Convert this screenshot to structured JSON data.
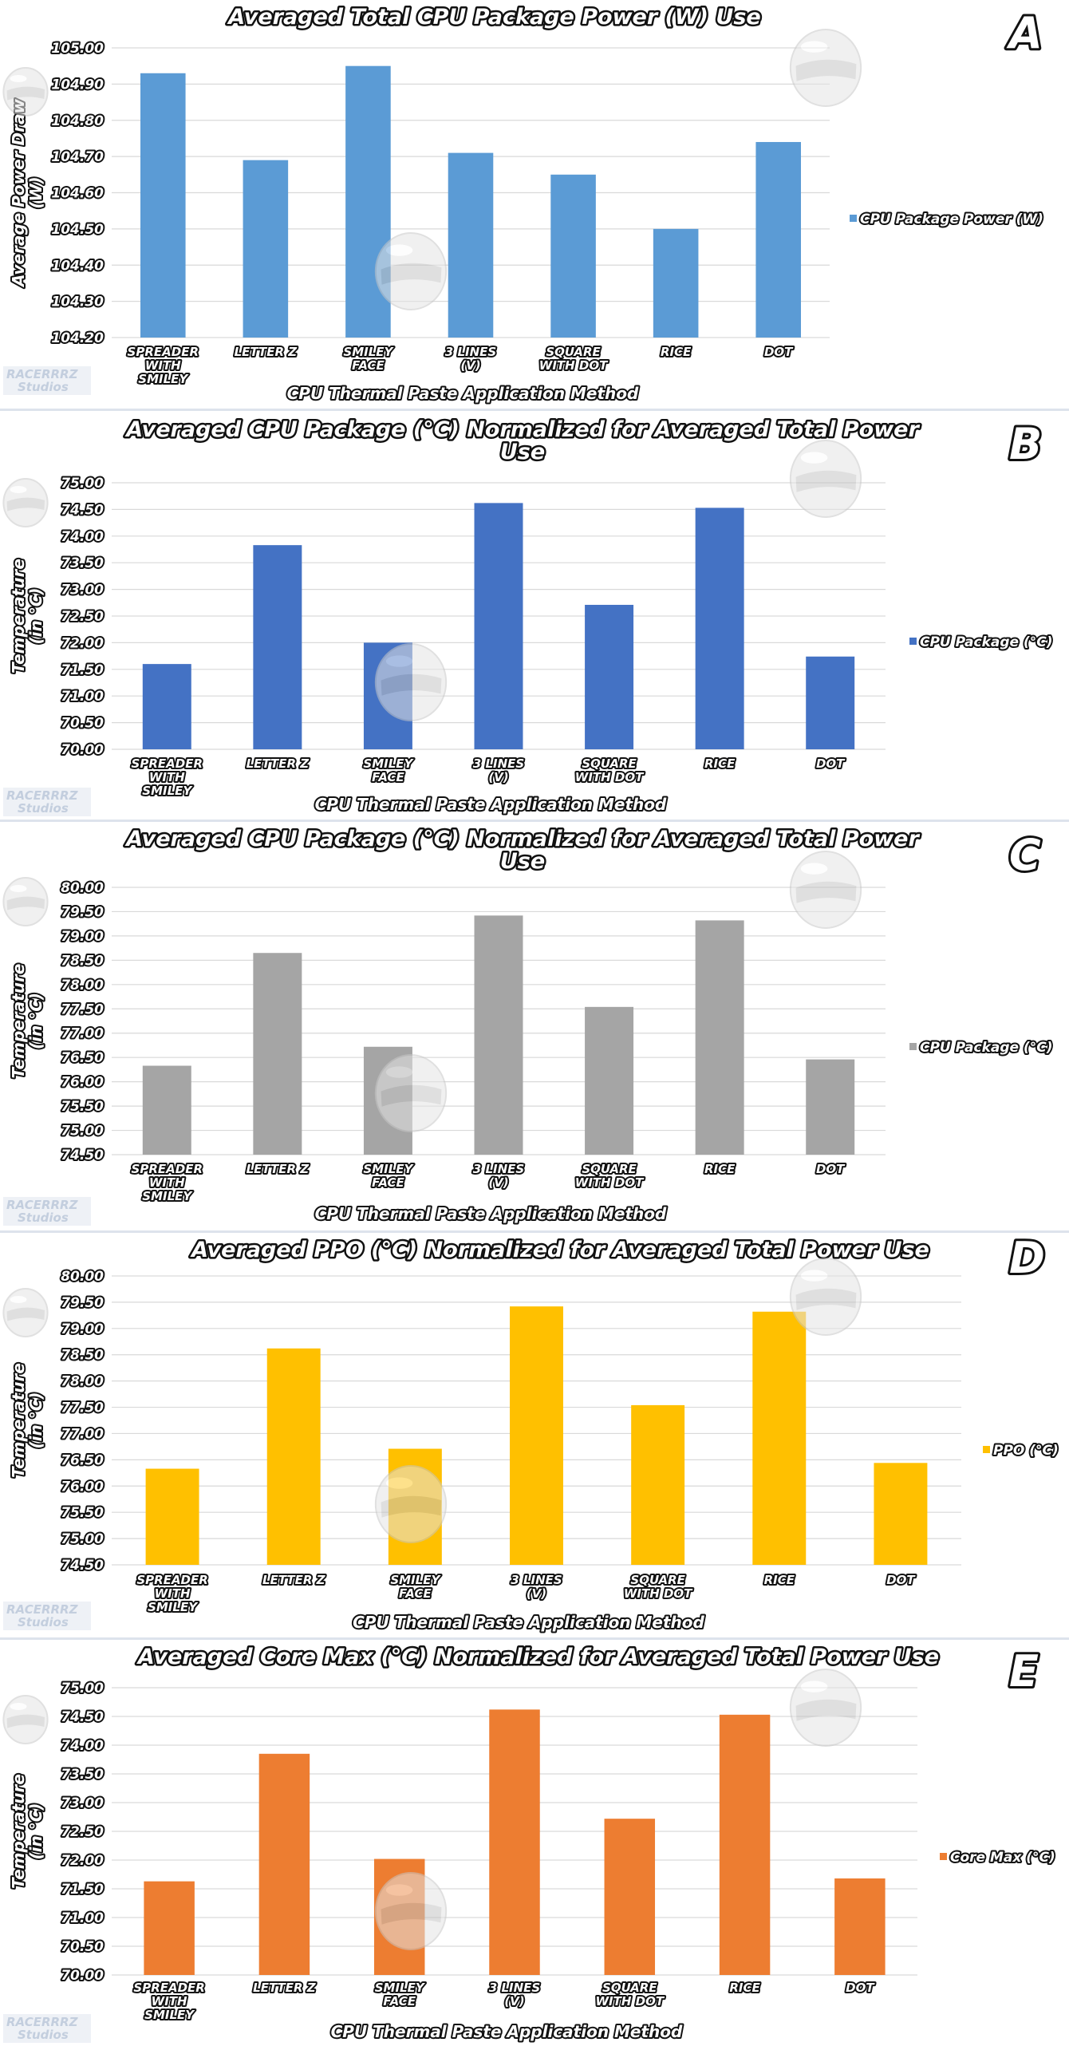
{
  "chart_data": [
    {
      "type": "bar",
      "panel_letter": "A",
      "title": "Averaged Total CPU Package Power (W) Use",
      "xlabel": "CPU Thermal Paste Application Method",
      "ylabel": "Average Power Draw (W)",
      "categories": [
        "SPREADER WITH SMILEY",
        "LETTER Z",
        "SMILEY FACE",
        "3 LINES (V)",
        "SQUARE WITH DOT",
        "RICE",
        "DOT"
      ],
      "series": [
        {
          "name": "CPU Package Power (W)",
          "values": [
            104.93,
            104.69,
            104.95,
            104.71,
            104.65,
            104.5,
            104.74
          ],
          "color": "#5b9bd5"
        }
      ],
      "ylim": [
        104.2,
        105.0
      ],
      "yticks": [
        "104.20",
        "104.30",
        "104.40",
        "104.50",
        "104.60",
        "104.70",
        "104.80",
        "104.90",
        "105.00"
      ],
      "grid": true,
      "legend_position": "right"
    },
    {
      "type": "bar",
      "panel_letter": "B",
      "title": "Averaged CPU Package (°C) Normalized for Averaged Total Power Use",
      "xlabel": "CPU Thermal Paste Application Method",
      "ylabel": "Temperature (in °C)",
      "categories": [
        "SPREADER WITH SMILEY",
        "LETTER Z",
        "SMILEY FACE",
        "3 LINES (V)",
        "SQUARE WITH DOT",
        "RICE",
        "DOT"
      ],
      "series": [
        {
          "name": "CPU Package (°C)",
          "values": [
            71.6,
            73.83,
            72.0,
            74.62,
            72.71,
            74.53,
            71.74
          ],
          "color": "#4472c4"
        }
      ],
      "ylim": [
        70.0,
        75.0
      ],
      "yticks": [
        "70.00",
        "70.50",
        "71.00",
        "71.50",
        "72.00",
        "72.50",
        "73.00",
        "73.50",
        "74.00",
        "74.50",
        "75.00"
      ],
      "grid": true,
      "legend_position": "right"
    },
    {
      "type": "bar",
      "panel_letter": "C",
      "title": "Averaged CPU Package (°C) Normalized for Averaged Total Power Use",
      "xlabel": "CPU Thermal Paste Application Method",
      "ylabel": "Temperature (in °C)",
      "categories": [
        "SPREADER WITH SMILEY",
        "LETTER Z",
        "SMILEY FACE",
        "3 LINES (V)",
        "SQUARE WITH DOT",
        "RICE",
        "DOT"
      ],
      "series": [
        {
          "name": "CPU Package (°C)",
          "values": [
            76.33,
            78.65,
            76.72,
            79.42,
            77.54,
            79.32,
            76.46
          ],
          "color": "#a5a5a5"
        }
      ],
      "ylim": [
        74.5,
        80.0
      ],
      "yticks": [
        "74.50",
        "75.00",
        "75.50",
        "76.00",
        "76.50",
        "77.00",
        "77.50",
        "78.00",
        "78.50",
        "79.00",
        "79.50",
        "80.00"
      ],
      "grid": true,
      "legend_position": "right"
    },
    {
      "type": "bar",
      "panel_letter": "D",
      "title": "Averaged PPO (°C) Normalized for Averaged Total Power Use",
      "xlabel": "CPU Thermal Paste Application Method",
      "ylabel": "Temperature (in °C)",
      "categories": [
        "SPREADER WITH SMILEY",
        "LETTER Z",
        "SMILEY FACE",
        "3 LINES (V)",
        "SQUARE WITH DOT",
        "RICE",
        "DOT"
      ],
      "series": [
        {
          "name": "PPO (°C)",
          "values": [
            76.33,
            78.62,
            76.71,
            79.42,
            77.54,
            79.32,
            76.44
          ],
          "color": "#ffc000"
        }
      ],
      "ylim": [
        74.5,
        80.0
      ],
      "yticks": [
        "74.50",
        "75.00",
        "75.50",
        "76.00",
        "76.50",
        "77.00",
        "77.50",
        "78.00",
        "78.50",
        "79.00",
        "79.50",
        "80.00"
      ],
      "grid": true,
      "legend_position": "right"
    },
    {
      "type": "bar",
      "panel_letter": "E",
      "title": "Averaged Core Max (°C) Normalized for Averaged Total Power Use",
      "xlabel": "CPU Thermal Paste Application Method",
      "ylabel": "Temperature (in °C)",
      "categories": [
        "SPREADER WITH SMILEY",
        "LETTER Z",
        "SMILEY FACE",
        "3 LINES (V)",
        "SQUARE WITH DOT",
        "RICE",
        "DOT"
      ],
      "series": [
        {
          "name": "Core Max (°C)",
          "values": [
            71.63,
            73.85,
            72.02,
            74.62,
            72.72,
            74.53,
            71.68
          ],
          "color": "#ed7d31"
        }
      ],
      "ylim": [
        70.0,
        75.0
      ],
      "yticks": [
        "70.00",
        "70.50",
        "71.00",
        "71.50",
        "72.00",
        "72.50",
        "73.00",
        "73.50",
        "74.00",
        "74.50",
        "75.00"
      ],
      "grid": true,
      "legend_position": "right"
    }
  ],
  "watermark": {
    "line1": "RACERRRZ",
    "line2": "Studios"
  }
}
